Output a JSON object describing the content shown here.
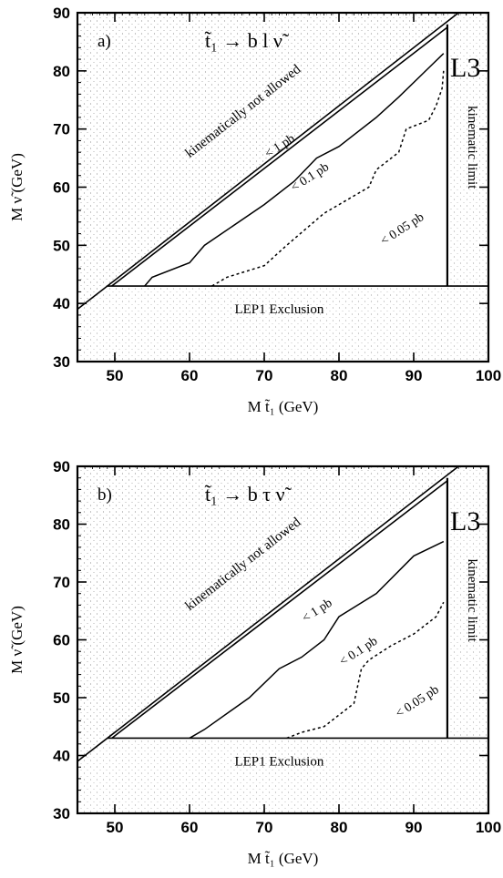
{
  "chart_data": [
    {
      "type": "line",
      "panel": "a)",
      "title": "t̃₁ → b l ν̃",
      "experiment": "L3",
      "xlabel": "M t̃₁ (GeV)",
      "ylabel": "M ν̃ (GeV)",
      "xlim": [
        45,
        100
      ],
      "ylim": [
        30,
        90
      ],
      "xticks": [
        50,
        60,
        70,
        80,
        90,
        100
      ],
      "yticks": [
        30,
        40,
        50,
        60,
        70,
        80,
        90
      ],
      "annotations": {
        "forbidden": "kinematically not allowed",
        "kinematic_limit": "kinematic limit",
        "lep1": "LEP1 Exclusion"
      },
      "series": [
        {
          "name": "< 1 pb",
          "style": "solid",
          "x": [
            54.0,
            55.0,
            60.0,
            62.0,
            70.0,
            74.0,
            77.0,
            80.0,
            85.0,
            88.0,
            92.0,
            94.0
          ],
          "y": [
            43.0,
            44.5,
            47.0,
            50.0,
            57.0,
            61.0,
            65.0,
            67.0,
            72.0,
            75.5,
            80.5,
            83.0
          ]
        },
        {
          "name": "< 0.1 pb",
          "style": "dashed",
          "x": [
            63.0,
            65.0,
            70.0,
            73.0,
            78.0,
            84.0,
            85.0,
            86.0,
            88.0,
            89.0,
            92.0,
            93.0,
            93.8,
            94.0
          ],
          "y": [
            43.0,
            44.5,
            46.5,
            50.0,
            55.5,
            60.0,
            63.0,
            64.0,
            66.0,
            70.0,
            71.5,
            74.0,
            77.0,
            80.0
          ]
        },
        {
          "name": "< 0.05 pb",
          "style": "label",
          "x": [],
          "y": []
        }
      ]
    },
    {
      "type": "line",
      "panel": "b)",
      "title": "t̃₁ → b τ ν̃",
      "experiment": "L3",
      "xlabel": "M t̃₁ (GeV)",
      "ylabel": "M ν̃ (GeV)",
      "xlim": [
        45,
        100
      ],
      "ylim": [
        30,
        90
      ],
      "xticks": [
        50,
        60,
        70,
        80,
        90,
        100
      ],
      "yticks": [
        30,
        40,
        50,
        60,
        70,
        80,
        90
      ],
      "annotations": {
        "forbidden": "kinematically not allowed",
        "kinematic_limit": "kinematic limit",
        "lep1": "LEP1 Exclusion"
      },
      "series": [
        {
          "name": "< 1 pb",
          "style": "solid",
          "x": [
            60.0,
            62.0,
            68.0,
            72.0,
            75.0,
            78.0,
            80.0,
            85.0,
            90.0,
            94.0
          ],
          "y": [
            43.0,
            44.5,
            50.0,
            55.0,
            57.0,
            60.0,
            64.0,
            68.0,
            74.5,
            77.0
          ]
        },
        {
          "name": "< 0.1 pb",
          "style": "dashed",
          "x": [
            73.0,
            75.0,
            78.0,
            82.0,
            83.0,
            84.0,
            87.0,
            90.0,
            93.0,
            94.0
          ],
          "y": [
            43.0,
            44.0,
            45.0,
            49.0,
            55.0,
            56.5,
            59.0,
            61.0,
            64.0,
            66.5
          ]
        },
        {
          "name": "< 0.05 pb",
          "style": "label",
          "x": [],
          "y": []
        }
      ]
    }
  ]
}
